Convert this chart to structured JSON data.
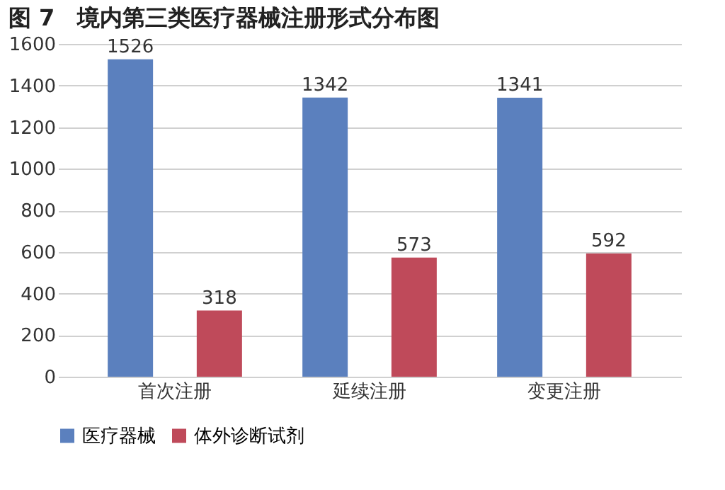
{
  "chart_data": {
    "type": "bar",
    "title": "图 7　境内第三类医疗器械注册形式分布图",
    "categories": [
      "首次注册",
      "延续注册",
      "变更注册"
    ],
    "series": [
      {
        "name": "医疗器械",
        "color": "#5b80be",
        "values": [
          1526,
          1342,
          1341
        ]
      },
      {
        "name": "体外诊断试剂",
        "color": "#bf4a5a",
        "values": [
          318,
          573,
          592
        ]
      }
    ],
    "ylim": [
      0,
      1600
    ],
    "yticks": [
      0,
      200,
      400,
      600,
      800,
      1000,
      1200,
      1400,
      1600
    ],
    "grid": "y",
    "legend": "bottom",
    "data_labels": true
  }
}
